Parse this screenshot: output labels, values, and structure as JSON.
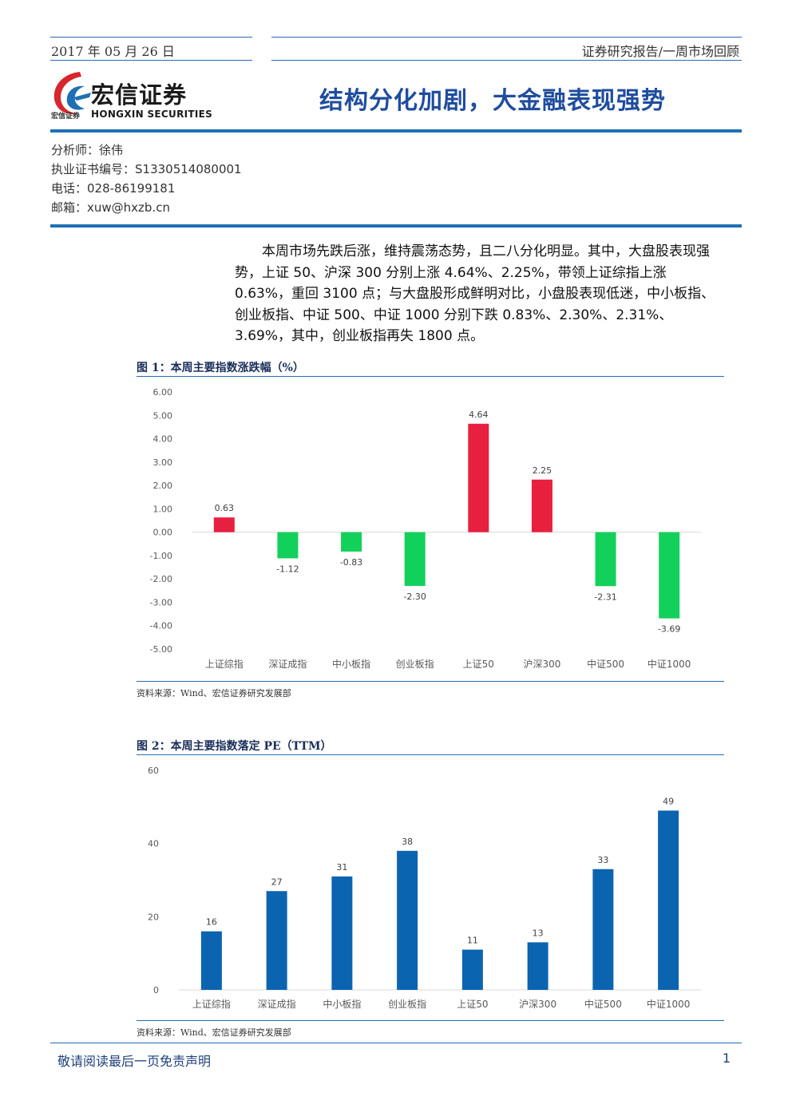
{
  "header": {
    "date": "2017 年 05 月 26 日",
    "report_type": "证券研究报告/一周市场回顾",
    "logo_cn": "宏信证券",
    "logo_en": "HONGXIN SECURITIES",
    "logo_small": "宏信证券",
    "title": "结构分化加剧，大金融表现强势",
    "colors": {
      "accent_blue": "#1f6fb5",
      "logo_red": "#d7262f"
    }
  },
  "analyst": {
    "name": "分析师：徐伟",
    "cert": "执业证书编号：S1330514080001",
    "phone": "电话：028-86199181",
    "email": "邮箱：xuw@hxzb.cn"
  },
  "body": {
    "paragraph": "本周市场先跌后涨，维持震荡态势，且二八分化明显。其中，大盘股表现强势，上证 50、沪深 300 分别上涨 4.64%、2.25%，带领上证综指上涨 0.63%，重回 3100 点；与大盘股形成鲜明对比，小盘股表现低迷，中小板指、创业板指、中证 500、中证 1000 分别下跌 0.83%、2.30%、2.31%、3.69%，其中，创业板指再失 1800 点。"
  },
  "figure1": {
    "title": "图 1：本周主要指数涨跌幅（%）",
    "source": "资料来源：Wind、宏信证券研究发展部"
  },
  "figure2": {
    "title": "图 2：本周主要指数落定 PE（TTM）",
    "source": "资料来源：Wind、宏信证券研究发展部"
  },
  "chart_data": [
    {
      "type": "bar",
      "categories": [
        "上证综指",
        "深证成指",
        "中小板指",
        "创业板指",
        "上证50",
        "沪深300",
        "中证500",
        "中证1000"
      ],
      "values": [
        0.63,
        -1.12,
        -0.83,
        -2.3,
        4.64,
        2.25,
        -2.31,
        -3.69
      ],
      "data_labels": [
        "0.63",
        "-1.12",
        "-0.83",
        "-2.30",
        "4.64",
        "2.25",
        "-2.31",
        "-3.69"
      ],
      "ylim": [
        -5,
        6
      ],
      "yticks": [
        "6.00",
        "5.00",
        "4.00",
        "3.00",
        "2.00",
        "1.00",
        "0.00",
        "-1.00",
        "-2.00",
        "-3.00",
        "-4.00",
        "-5.00"
      ],
      "colors": {
        "positive": "#e8203f",
        "negative": "#12d15a"
      },
      "grid": false
    },
    {
      "type": "bar",
      "categories": [
        "上证综指",
        "深证成指",
        "中小板指",
        "创业板指",
        "上证50",
        "沪深300",
        "中证500",
        "中证1000"
      ],
      "values": [
        16,
        27,
        31,
        38,
        11,
        13,
        33,
        49
      ],
      "data_labels": [
        "16",
        "27",
        "31",
        "38",
        "11",
        "13",
        "33",
        "49"
      ],
      "ylim": [
        0,
        60
      ],
      "yticks": [
        "60",
        "40",
        "20",
        "0"
      ],
      "colors": {
        "bar": "#0b64b0"
      },
      "grid": false
    }
  ],
  "footer": {
    "disclaimer": "敬请阅读最后一页免责声明",
    "page": "1"
  }
}
